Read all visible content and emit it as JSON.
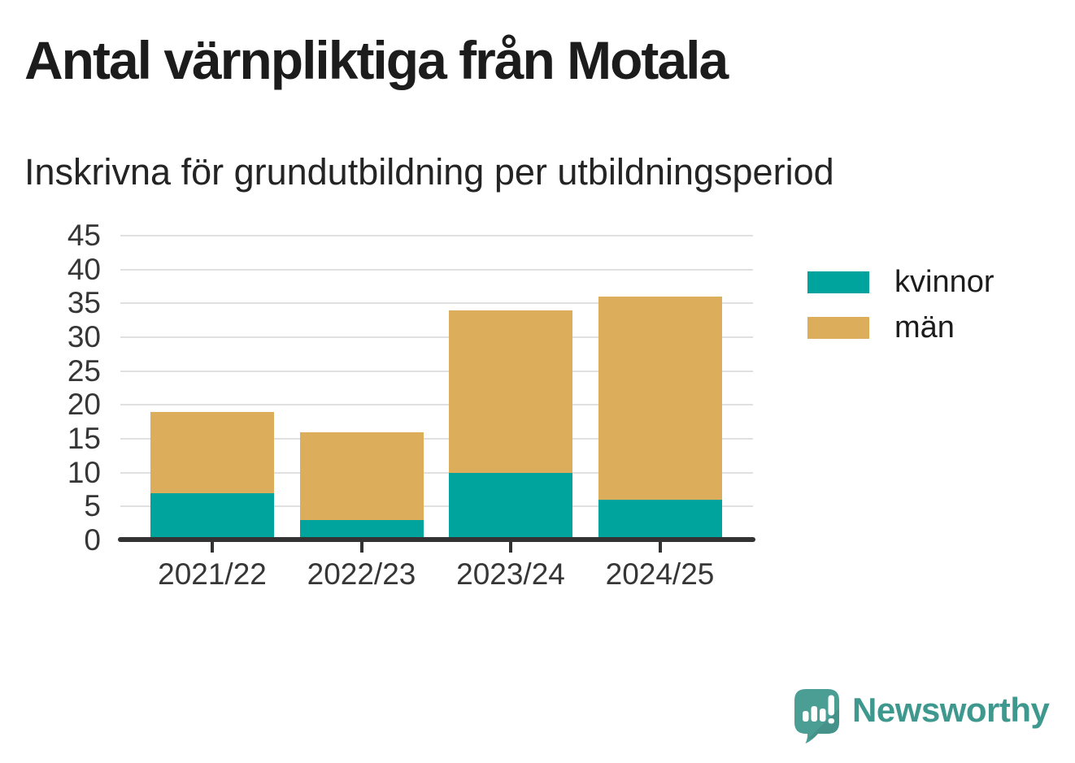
{
  "title": "Antal värnpliktiga från Motala",
  "subtitle": "Inskrivna för grundutbildning per utbildningsperiod",
  "chart_data": {
    "type": "bar",
    "stacked": true,
    "title": "Antal värnpliktiga från Motala",
    "subtitle": "Inskrivna för grundutbildning per utbildningsperiod",
    "categories": [
      "2021/22",
      "2022/23",
      "2023/24",
      "2024/25"
    ],
    "series": [
      {
        "name": "kvinnor",
        "color": "#00a49c",
        "values": [
          7,
          3,
          10,
          6
        ]
      },
      {
        "name": "män",
        "color": "#dcae5c",
        "values": [
          12,
          13,
          24,
          30
        ]
      }
    ],
    "stack_totals": [
      19,
      16,
      34,
      36
    ],
    "xlabel": "",
    "ylabel": "",
    "ylim": [
      0,
      45
    ],
    "yticks": [
      0,
      5,
      10,
      15,
      20,
      25,
      30,
      35,
      40,
      45
    ],
    "grid": true,
    "legend_position": "right"
  },
  "legend": {
    "items": [
      {
        "label": "kvinnor",
        "color": "#00a49c"
      },
      {
        "label": "män",
        "color": "#dcae5c"
      }
    ]
  },
  "colors": {
    "kvinnor": "#00a49c",
    "man": "#dcae5c",
    "grid": "#e0e0e0",
    "axis": "#333333",
    "tick_text": "#363636",
    "title_text": "#1c1c1c",
    "logo_teal": "#4a9e94",
    "logo_text": "#3e988e"
  },
  "footer": {
    "brand": "Newsworthy"
  }
}
